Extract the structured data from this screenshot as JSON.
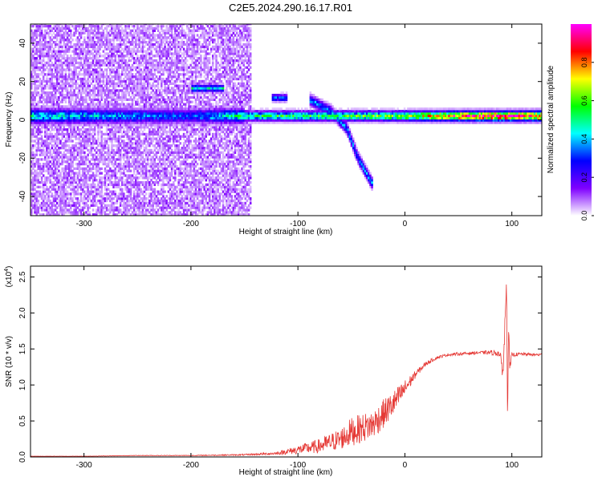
{
  "title": "C2E5.2024.290.16.17.R01",
  "chart_data": [
    {
      "type": "heatmap",
      "xlabel": "Height of straight line (km)",
      "ylabel": "Frequency (Hz)",
      "xlim": [
        -350,
        128
      ],
      "ylim": [
        -50,
        50
      ],
      "xticks": [
        -300,
        -200,
        -100,
        0,
        100
      ],
      "yticks": [
        -40,
        -20,
        0,
        20,
        40
      ],
      "colorbar": {
        "label": "Normalized spectral amplitude",
        "range": [
          0,
          1
        ],
        "ticks": [
          0.0,
          0.2,
          0.4,
          0.6,
          0.8
        ],
        "tick_labels": [
          "0.0",
          "0.2",
          "0.4",
          "0.6",
          "0.8"
        ],
        "colormap": [
          "#ffffff",
          "#7f00ff",
          "#0000ff",
          "#00ffff",
          "#00ff00",
          "#ffff00",
          "#ff0000",
          "#ff00ff"
        ]
      },
      "features": [
        {
          "name": "noise",
          "x_range": [
            -350,
            -145
          ],
          "freq_range": [
            -50,
            50
          ],
          "amplitude": 0.12
        },
        {
          "name": "low-frequency band",
          "x_range": [
            -350,
            128
          ],
          "freq": 1.5,
          "amplitude_profile": [
            [
              -350,
              0.45
            ],
            [
              -200,
              0.3
            ],
            [
              -150,
              0.5
            ],
            [
              -60,
              0.55
            ],
            [
              0,
              0.6
            ],
            [
              50,
              0.85
            ],
            [
              90,
              0.9
            ],
            [
              128,
              0.85
            ]
          ]
        },
        {
          "name": "harmonic",
          "x_range": [
            -200,
            -170
          ],
          "freq": 16,
          "amplitude": 0.45
        },
        {
          "name": "harmonic",
          "x_range": [
            -125,
            -110
          ],
          "freq": 11,
          "amplitude": 0.35
        },
        {
          "name": "descending branch",
          "points": [
            [
              -90,
              10
            ],
            [
              -70,
              4
            ],
            [
              -55,
              -5
            ],
            [
              -45,
              -20
            ],
            [
              -30,
              -35
            ]
          ],
          "amplitude": 0.35
        }
      ]
    },
    {
      "type": "line",
      "xlabel": "Height of straight line (km)",
      "ylabel": "SNR (10 * v/v)",
      "y_multiplier": "(x10",
      "y_multiplier_exp": "4",
      "y_multiplier_close": ")",
      "xlim": [
        -350,
        128
      ],
      "ylim": [
        0,
        2.65
      ],
      "xticks": [
        -300,
        -200,
        -100,
        0,
        100
      ],
      "yticks": [
        0.0,
        0.5,
        1.0,
        1.5,
        2.0,
        2.5
      ],
      "ytick_labels": [
        "0.0",
        "0.5",
        "1.0",
        "1.5",
        "2.0",
        "2.5"
      ],
      "series": [
        {
          "color": "#e53935",
          "x": [
            -350,
            -300,
            -250,
            -200,
            -150,
            -120,
            -100,
            -80,
            -60,
            -50,
            -40,
            -30,
            -20,
            -10,
            0,
            10,
            20,
            30,
            40,
            50,
            60,
            70,
            80,
            88,
            92,
            94,
            95,
            96,
            97,
            98,
            100,
            110,
            120,
            128
          ],
          "y": [
            0.01,
            0.01,
            0.02,
            0.02,
            0.03,
            0.05,
            0.1,
            0.15,
            0.25,
            0.35,
            0.4,
            0.45,
            0.6,
            0.75,
            0.95,
            1.15,
            1.3,
            1.38,
            1.42,
            1.43,
            1.44,
            1.45,
            1.45,
            1.44,
            1.2,
            2.0,
            2.6,
            0.5,
            1.9,
            1.2,
            1.42,
            1.43,
            1.42,
            1.42
          ],
          "noise": [
            0.002,
            0.002,
            0.004,
            0.005,
            0.01,
            0.02,
            0.06,
            0.1,
            0.15,
            0.2,
            0.2,
            0.2,
            0.2,
            0.18,
            0.12,
            0.05,
            0.03,
            0.02,
            0.02,
            0.02,
            0.02,
            0.02,
            0.03,
            0.05,
            0.15,
            0.2,
            0.1,
            0.1,
            0.1,
            0.1,
            0.03,
            0.02,
            0.02,
            0.02
          ]
        }
      ]
    }
  ]
}
